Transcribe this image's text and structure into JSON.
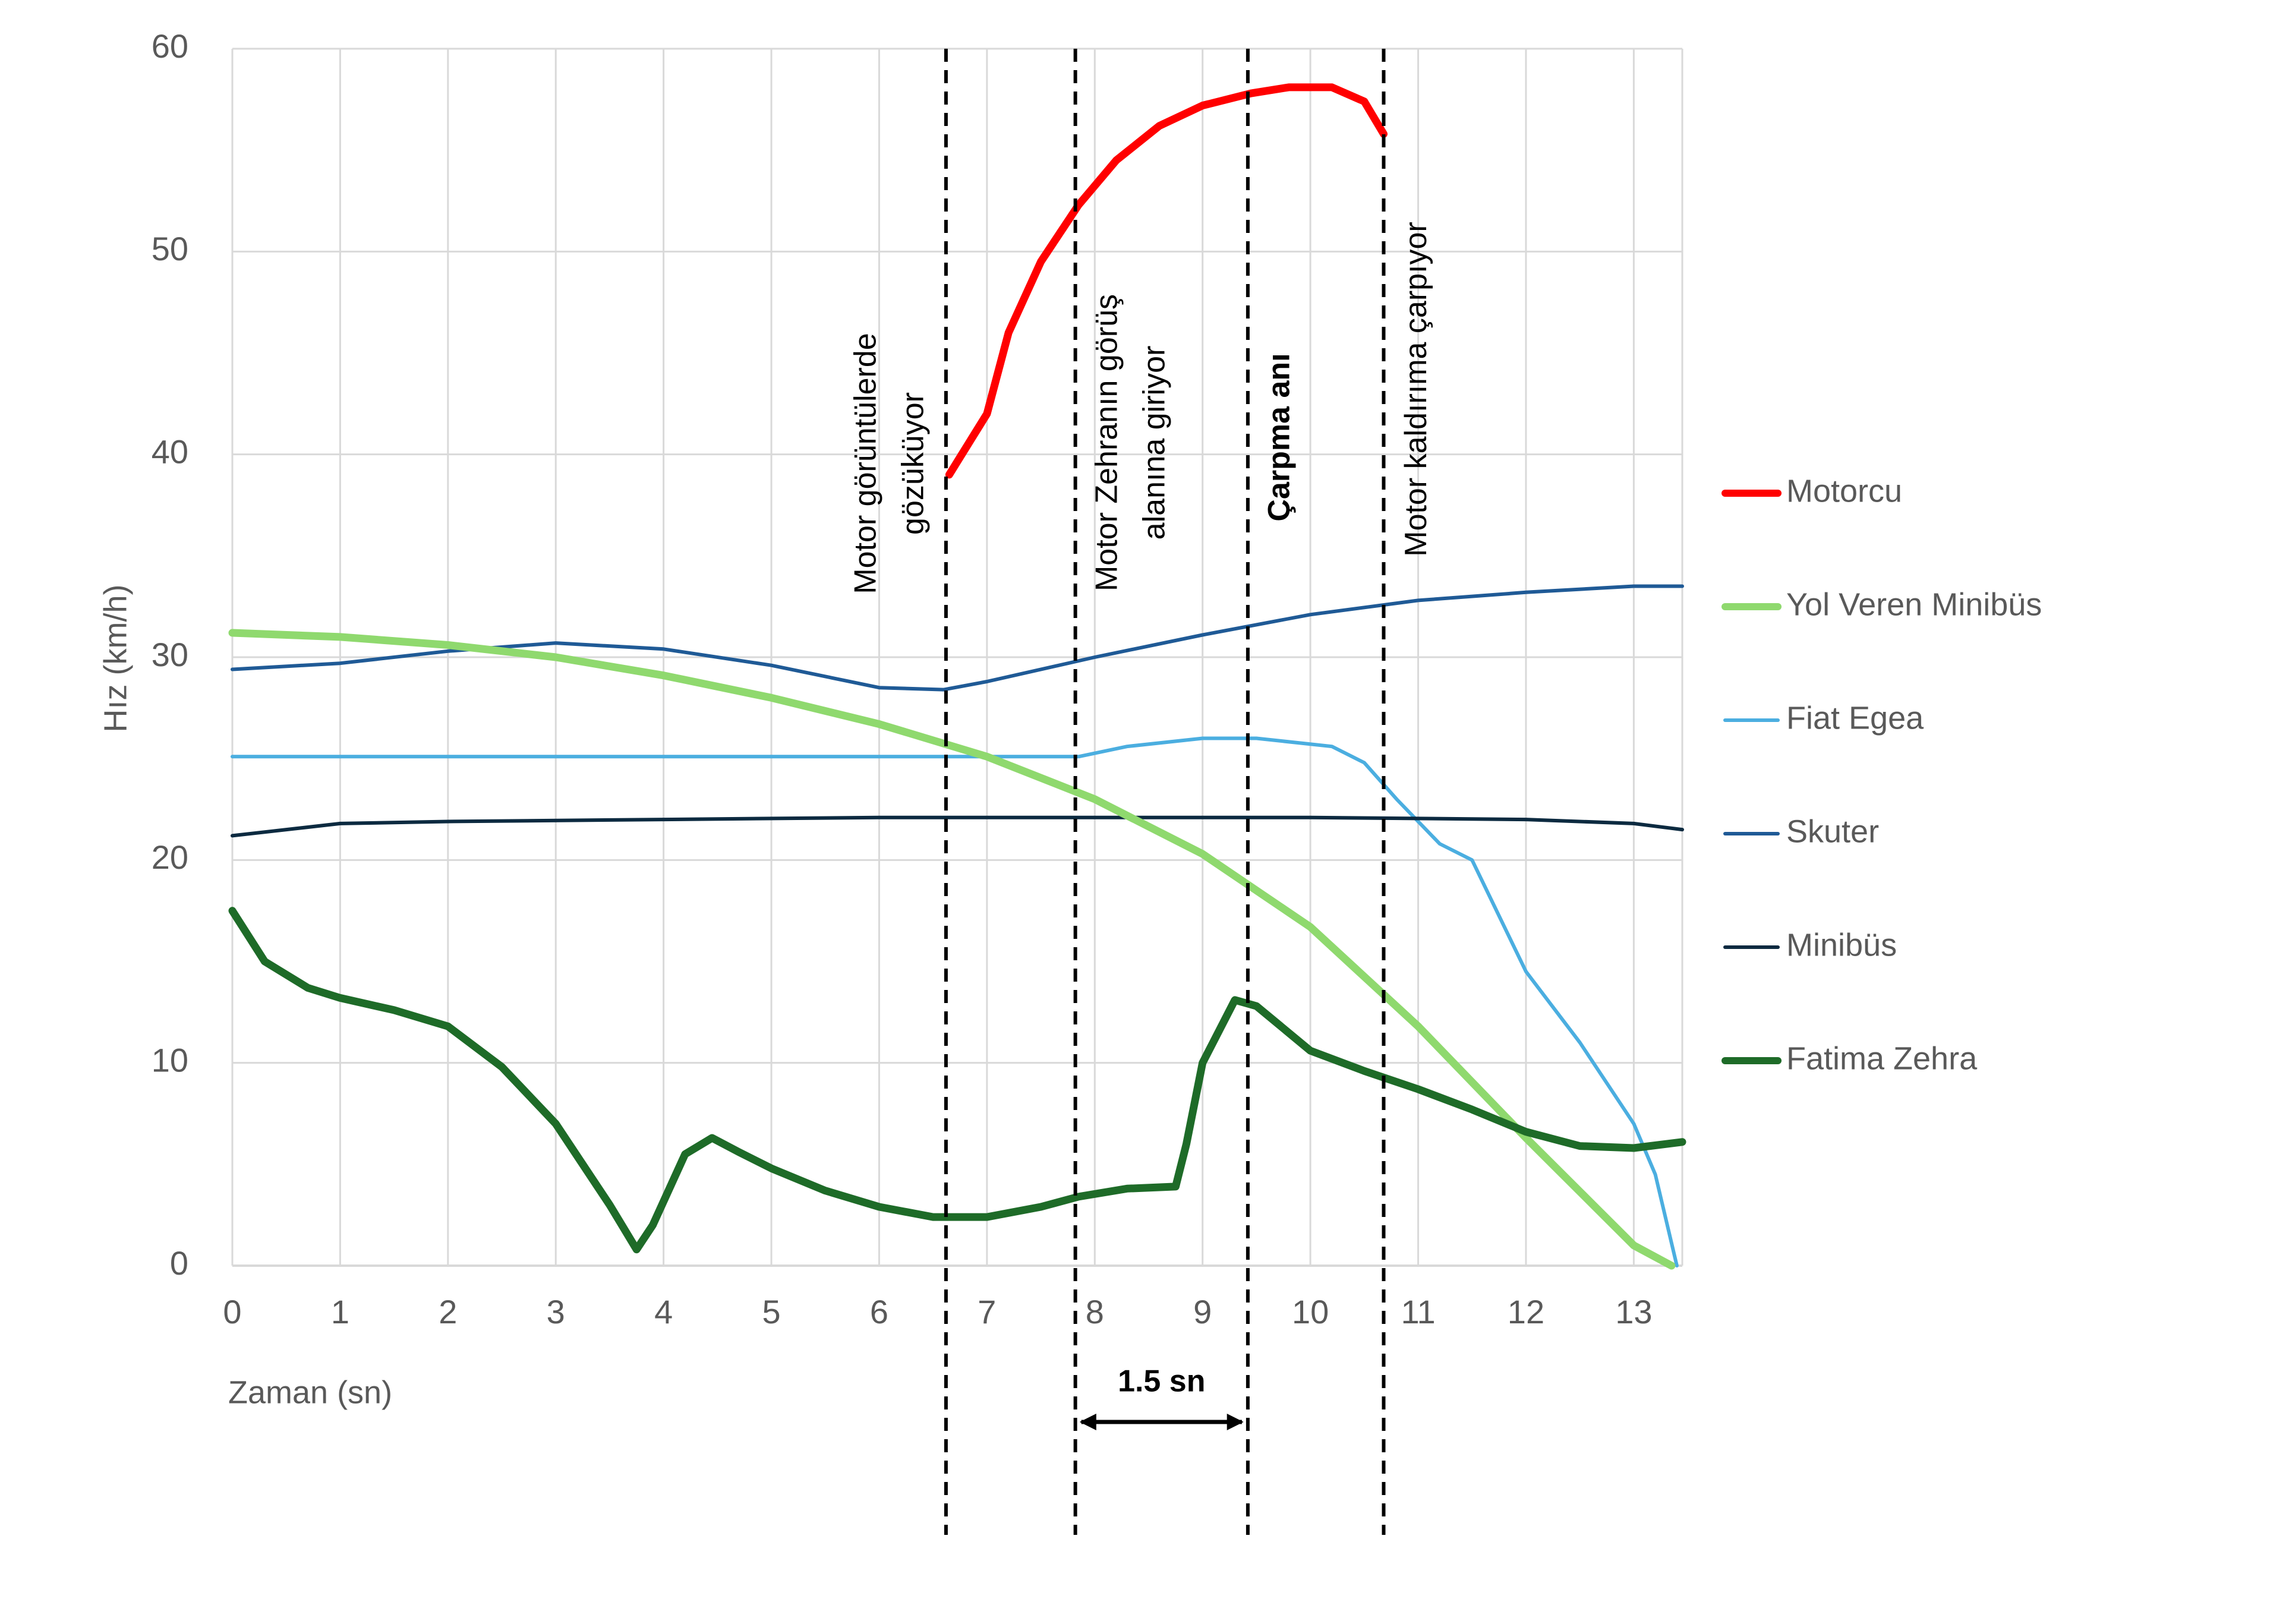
{
  "chart_data": {
    "type": "line",
    "x_label": "Zaman (sn)",
    "y_label": "Hız (km/h)",
    "xlim": [
      0,
      13.45
    ],
    "ylim": [
      0,
      60
    ],
    "xticks": [
      0,
      1,
      2,
      3,
      4,
      5,
      6,
      7,
      8,
      9,
      10,
      11,
      12,
      13
    ],
    "yticks": [
      0,
      10,
      20,
      30,
      40,
      50,
      60
    ],
    "grid": true,
    "legend": "right",
    "series": [
      {
        "name": "Motorcu",
        "color": "#ff0000",
        "x": [
          6.65,
          7.0,
          7.2,
          7.5,
          7.85,
          8.2,
          8.6,
          9.0,
          9.45,
          9.8,
          10.2,
          10.5,
          10.68
        ],
        "values": [
          39,
          42,
          46,
          49.5,
          52.3,
          54.5,
          56.2,
          57.2,
          57.8,
          58.1,
          58.1,
          57.4,
          55.8
        ]
      },
      {
        "name": "Yol Veren Minibüs",
        "color": "#8fd96e",
        "x": [
          0,
          1,
          2,
          3,
          4,
          5,
          6,
          7,
          8,
          9,
          10,
          11,
          12,
          13,
          13.35
        ],
        "values": [
          31.2,
          31.0,
          30.6,
          30.0,
          29.1,
          28.0,
          26.7,
          25.1,
          23.0,
          20.3,
          16.7,
          11.8,
          6.3,
          1.0,
          0
        ]
      },
      {
        "name": "Fiat Egea",
        "color": "#4baee0",
        "x": [
          0,
          7.85,
          8.3,
          9,
          9.5,
          10.2,
          10.5,
          10.8,
          11.2,
          11.5,
          12.0,
          12.5,
          13,
          13.2,
          13.4
        ],
        "values": [
          25.1,
          25.1,
          25.6,
          26.0,
          26.0,
          25.6,
          24.8,
          23.0,
          20.8,
          20.0,
          14.5,
          11,
          7,
          4.5,
          0
        ]
      },
      {
        "name": "Skuter",
        "color": "#1f5a96",
        "x": [
          0,
          1,
          2,
          3,
          4,
          5,
          6,
          6.6,
          7,
          8,
          9,
          10,
          11,
          12,
          13,
          13.45
        ],
        "values": [
          29.4,
          29.7,
          30.3,
          30.7,
          30.4,
          29.6,
          28.5,
          28.4,
          28.8,
          30.0,
          31.1,
          32.1,
          32.8,
          33.2,
          33.5,
          33.5
        ]
      },
      {
        "name": "Minibüs",
        "color": "#0c2a40",
        "x": [
          0,
          1,
          2,
          4,
          6,
          8,
          10,
          12,
          13,
          13.45
        ],
        "values": [
          21.2,
          21.8,
          21.9,
          22.0,
          22.1,
          22.1,
          22.1,
          22.0,
          21.8,
          21.5
        ]
      },
      {
        "name": "Fatima Zehra",
        "color": "#1e6b28",
        "x": [
          0,
          0.3,
          0.7,
          1,
          1.5,
          2,
          2.5,
          3,
          3.5,
          3.75,
          3.9,
          4.2,
          4.45,
          4.7,
          5,
          5.5,
          6,
          6.5,
          7,
          7.5,
          7.85,
          8.3,
          8.75,
          8.85,
          9,
          9.3,
          9.5,
          10,
          10.5,
          11,
          11.5,
          12,
          12.5,
          13,
          13.45
        ],
        "values": [
          17.5,
          15,
          13.7,
          13.2,
          12.6,
          11.8,
          9.8,
          7,
          3,
          0.8,
          2,
          5.5,
          6.3,
          5.6,
          4.8,
          3.7,
          2.9,
          2.4,
          2.4,
          2.9,
          3.4,
          3.8,
          3.9,
          6,
          10,
          13.1,
          12.8,
          10.6,
          9.6,
          8.7,
          7.7,
          6.6,
          5.9,
          5.8,
          6.1
        ]
      }
    ],
    "annotations": [
      {
        "x": 6.62,
        "lines": [
          "Motor görüntülerde",
          "gözüküyor"
        ]
      },
      {
        "x": 7.82,
        "lines": [
          "Motor Zehranın görüş",
          "alanına giriyor"
        ]
      },
      {
        "x": 9.42,
        "lines": [
          "Çarpma anı"
        ],
        "bold": true
      },
      {
        "x": 10.68,
        "lines": [
          "Motor kaldırıma çarpıyor"
        ]
      }
    ],
    "span": {
      "from": 7.82,
      "to": 9.42,
      "label": "1.5 sn"
    }
  }
}
